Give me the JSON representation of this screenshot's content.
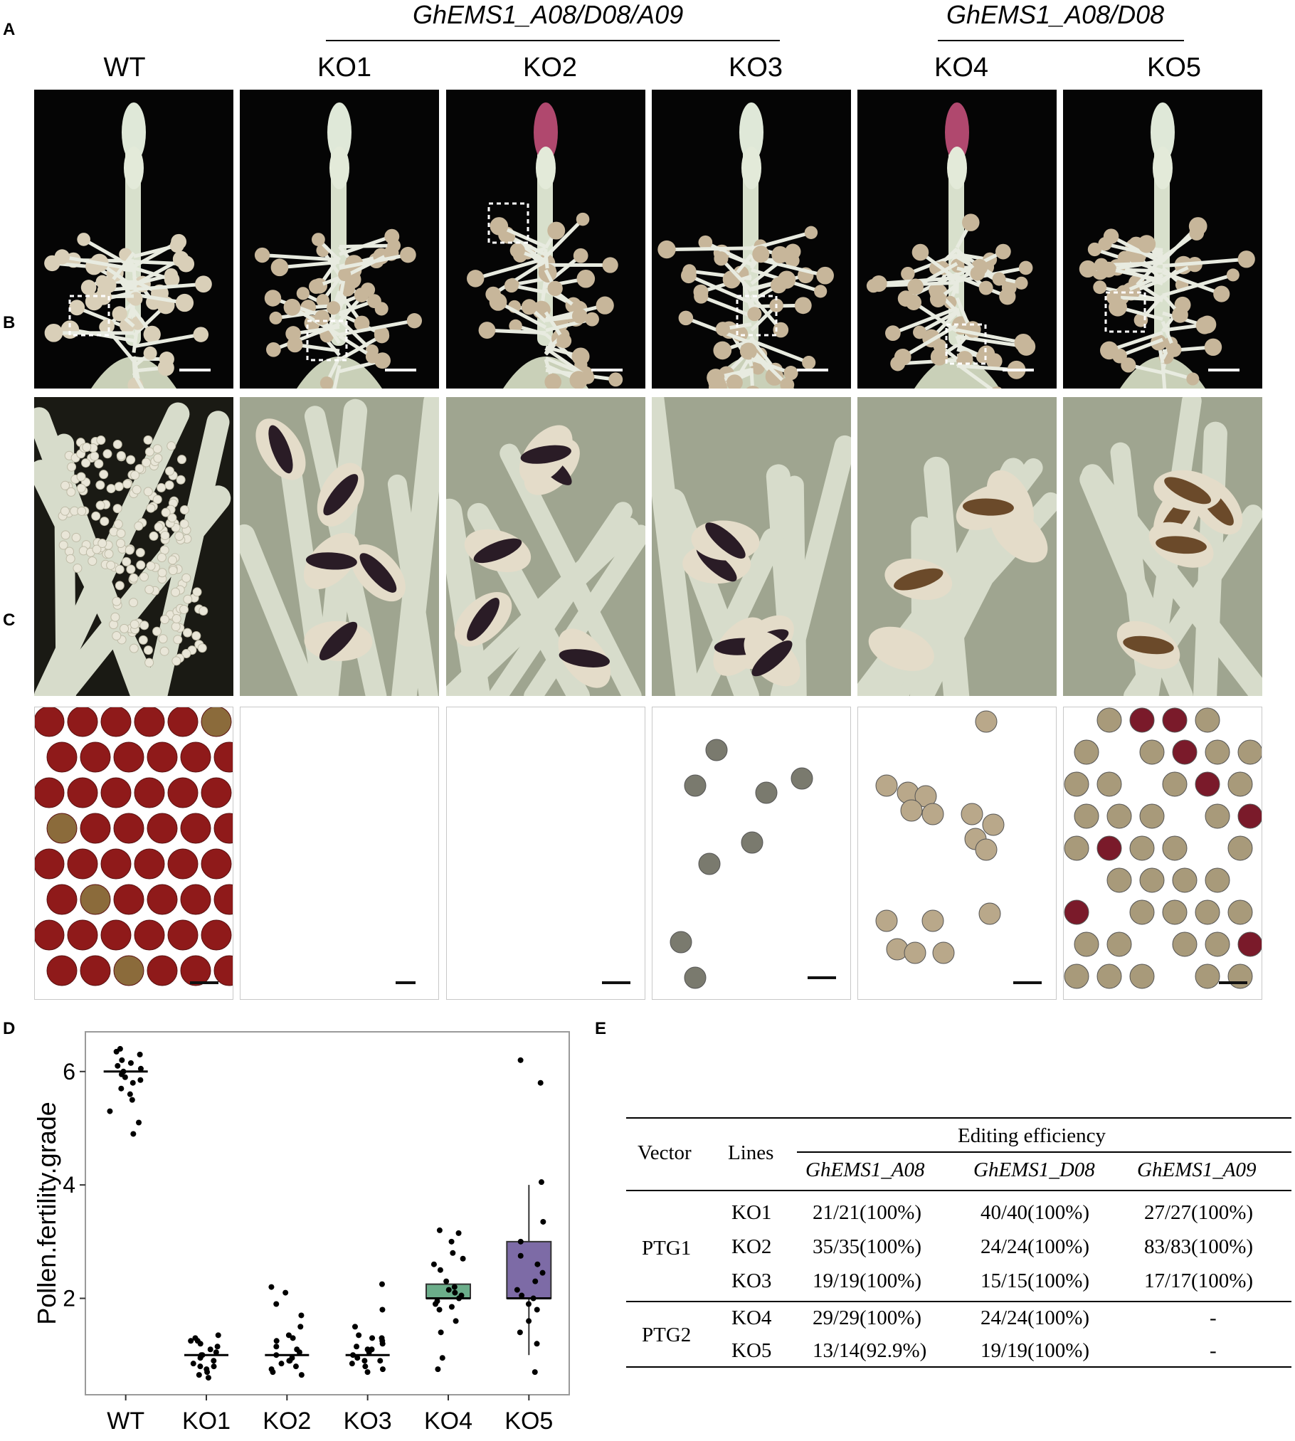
{
  "panel_letters": {
    "a": "A",
    "b": "B",
    "c": "C",
    "d": "D",
    "e": "E"
  },
  "genotype_groups": {
    "triple": "GhEMS1_A08/D08/A09",
    "double": "GhEMS1_A08/D08"
  },
  "columns": [
    "WT",
    "KO1",
    "KO2",
    "KO3",
    "KO4",
    "KO5"
  ],
  "colors": {
    "photo_background": "#050505",
    "stain_red": "#8f1a1a",
    "ko4_box": "#6bad8a",
    "ko5_box": "#7d6ba6"
  },
  "chart_data": {
    "type": "box",
    "ylabel": "Pollen.fertility.grade",
    "xlabel": "",
    "categories": [
      "WT",
      "KO1",
      "KO2",
      "KO3",
      "KO4",
      "KO5"
    ],
    "yticks": [
      2,
      4,
      6
    ],
    "ylim": [
      0.3,
      6.7
    ],
    "grid": false,
    "boxes": [
      {
        "name": "WT",
        "median": 6,
        "q1": 6,
        "q3": 6,
        "whisker_low": 6,
        "whisker_high": 6,
        "fill": null
      },
      {
        "name": "KO1",
        "median": 1,
        "q1": 1,
        "q3": 1,
        "whisker_low": 1,
        "whisker_high": 1,
        "fill": null
      },
      {
        "name": "KO2",
        "median": 1,
        "q1": 1,
        "q3": 1,
        "whisker_low": 1,
        "whisker_high": 1,
        "fill": null
      },
      {
        "name": "KO3",
        "median": 1,
        "q1": 1,
        "q3": 1,
        "whisker_low": 1,
        "whisker_high": 1,
        "fill": null
      },
      {
        "name": "KO4",
        "median": 2,
        "q1": 2,
        "q3": 2.25,
        "whisker_low": 2,
        "whisker_high": 2.25,
        "fill": "#6bad8a"
      },
      {
        "name": "KO5",
        "median": 2,
        "q1": 2,
        "q3": 3,
        "whisker_low": 1,
        "whisker_high": 4,
        "fill": "#7d6ba6"
      }
    ],
    "points": [
      {
        "cat": 0,
        "y": [
          6.4,
          6.35,
          6.3,
          6.2,
          6.15,
          6.1,
          6.05,
          6.0,
          5.95,
          5.9,
          5.85,
          5.8,
          5.7,
          5.6,
          5.5,
          5.3,
          5.1,
          4.9
        ]
      },
      {
        "cat": 1,
        "y": [
          1.35,
          1.3,
          1.25,
          1.2,
          1.15,
          1.1,
          1.05,
          1.0,
          0.95,
          0.9,
          0.85,
          0.8,
          0.75,
          0.7,
          0.65,
          0.6,
          1.25,
          1.0,
          0.8
        ]
      },
      {
        "cat": 2,
        "y": [
          2.2,
          2.1,
          1.9,
          1.7,
          1.5,
          1.35,
          1.25,
          1.15,
          1.05,
          1.0,
          0.95,
          0.9,
          0.85,
          0.8,
          0.75,
          0.7,
          0.65,
          1.3,
          1.1,
          0.9
        ]
      },
      {
        "cat": 3,
        "y": [
          2.25,
          1.8,
          1.5,
          1.35,
          1.3,
          1.25,
          1.2,
          1.15,
          1.1,
          1.05,
          1.0,
          0.95,
          0.9,
          0.85,
          0.8,
          0.75,
          0.7,
          1.3,
          1.1,
          0.9
        ]
      },
      {
        "cat": 4,
        "y": [
          3.2,
          3.15,
          3.0,
          2.8,
          2.7,
          2.6,
          2.5,
          2.3,
          2.2,
          2.15,
          2.1,
          2.05,
          2.0,
          1.95,
          1.9,
          1.85,
          1.8,
          1.6,
          1.4,
          0.95,
          0.75
        ]
      },
      {
        "cat": 5,
        "y": [
          6.2,
          5.8,
          4.05,
          3.35,
          3.0,
          2.75,
          2.6,
          2.45,
          2.3,
          2.15,
          2.05,
          2.0,
          1.9,
          1.8,
          1.6,
          1.4,
          1.2,
          0.7
        ]
      }
    ]
  },
  "table": {
    "headers": {
      "vector": "Vector",
      "lines": "Lines",
      "editing": "Editing efficiency",
      "genes": [
        "GhEMS1_A08",
        "GhEMS1_D08",
        "GhEMS1_A09"
      ]
    },
    "groups": [
      {
        "vector": "PTG1",
        "rows": [
          {
            "line": "KO1",
            "values": [
              "21/21(100%)",
              "40/40(100%)",
              "27/27(100%)"
            ]
          },
          {
            "line": "KO2",
            "values": [
              "35/35(100%)",
              "24/24(100%)",
              "83/83(100%)"
            ]
          },
          {
            "line": "KO3",
            "values": [
              "19/19(100%)",
              "15/15(100%)",
              "17/17(100%)"
            ]
          }
        ]
      },
      {
        "vector": "PTG2",
        "rows": [
          {
            "line": "KO4",
            "values": [
              "29/29(100%)",
              "24/24(100%)",
              "-"
            ]
          },
          {
            "line": "KO5",
            "values": [
              "13/14(92.9%)",
              "19/19(100%)",
              "-"
            ]
          }
        ]
      }
    ]
  }
}
